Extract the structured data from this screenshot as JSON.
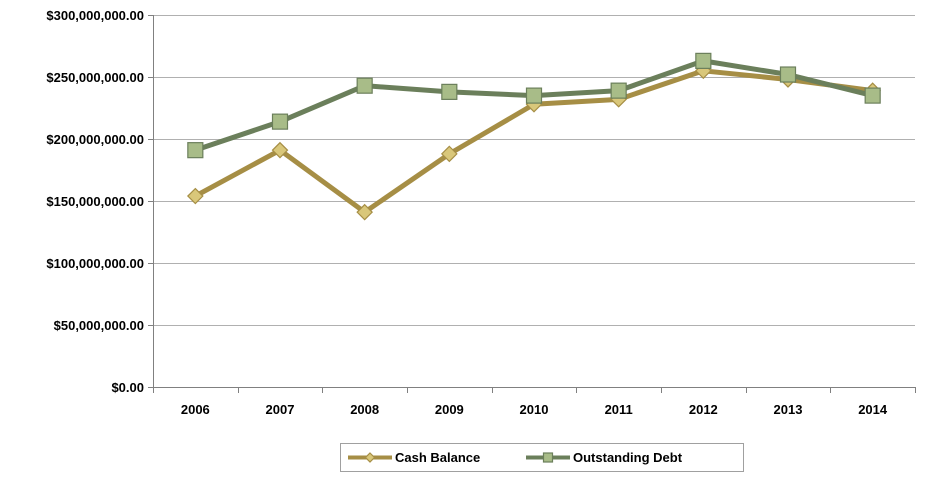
{
  "chart_data": {
    "type": "line",
    "categories": [
      "2006",
      "2007",
      "2008",
      "2009",
      "2010",
      "2011",
      "2012",
      "2013",
      "2014"
    ],
    "series": [
      {
        "name": "Cash Balance",
        "values": [
          154000000,
          191000000,
          141000000,
          188000000,
          228000000,
          232000000,
          255000000,
          248000000,
          239000000
        ],
        "color": "#a68e45",
        "marker_fill": "#d9c77a",
        "marker": "diamond"
      },
      {
        "name": "Outstanding Debt",
        "values": [
          191000000,
          214000000,
          243000000,
          238000000,
          235000000,
          239000000,
          263000000,
          252000000,
          235000000
        ],
        "color": "#6b7f5b",
        "marker_fill": "#a8bc88",
        "marker": "square"
      }
    ],
    "ylim": [
      0,
      300000000
    ],
    "y_ticks": [
      {
        "value": 0,
        "label": "$0.00"
      },
      {
        "value": 50000000,
        "label": "$50,000,000.00"
      },
      {
        "value": 100000000,
        "label": "$100,000,000.00"
      },
      {
        "value": 150000000,
        "label": "$150,000,000.00"
      },
      {
        "value": 200000000,
        "label": "$200,000,000.00"
      },
      {
        "value": 250000000,
        "label": "$250,000,000.00"
      },
      {
        "value": 300000000,
        "label": "$300,000,000.00"
      }
    ],
    "grid": true,
    "legend": "bottom",
    "grid_color": "#b0b0b0",
    "axis_color": "#808080"
  }
}
